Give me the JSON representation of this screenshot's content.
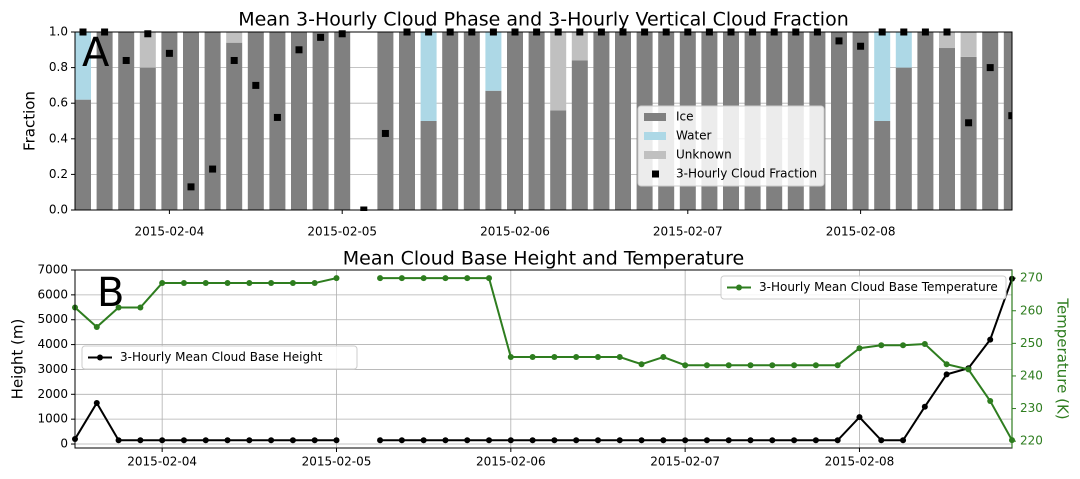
{
  "chart_data": [
    {
      "type": "bar",
      "title": "Mean 3-Hourly Cloud Phase and 3-Hourly Vertical Cloud Fraction",
      "panel_label": "A",
      "y_label": "Fraction",
      "categories": [
        null,
        null,
        null,
        null,
        "2015-02-04",
        null,
        null,
        null,
        null,
        null,
        null,
        null,
        "2015-02-05",
        null,
        null,
        null,
        null,
        null,
        null,
        null,
        "2015-02-06",
        null,
        null,
        null,
        null,
        null,
        null,
        null,
        "2015-02-07",
        null,
        null,
        null,
        null,
        null,
        null,
        null,
        "2015-02-08",
        null,
        null,
        null,
        null,
        null,
        null,
        null
      ],
      "series": [
        {
          "name": "Ice",
          "type": "bar",
          "color": "#808080",
          "values": [
            0.62,
            1,
            1,
            0.8,
            1,
            1,
            1,
            0.94,
            1,
            1,
            1,
            1,
            1,
            null,
            1,
            1,
            0.5,
            1,
            1,
            0.67,
            1,
            1,
            0.56,
            0.84,
            1,
            1,
            1,
            1,
            1,
            1,
            1,
            1,
            1,
            1,
            1,
            1,
            1,
            0.5,
            0.8,
            1,
            0.91,
            0.86,
            1,
            1
          ]
        },
        {
          "name": "Water",
          "type": "bar",
          "color": "#add8e6",
          "values": [
            0.38,
            0,
            0,
            0,
            0,
            0,
            0,
            0,
            0,
            0,
            0,
            0,
            0,
            null,
            0,
            0,
            0.5,
            0,
            0,
            0.33,
            0,
            0,
            0,
            0,
            0,
            0,
            0,
            0,
            0,
            0,
            0,
            0,
            0,
            0,
            0,
            0,
            0,
            0.5,
            0.2,
            0,
            0,
            0,
            0,
            0
          ]
        },
        {
          "name": "Unknown",
          "type": "bar",
          "color": "#c0c0c0",
          "values": [
            0,
            0,
            0,
            0.2,
            0,
            0,
            0,
            0.06,
            0,
            0,
            0,
            0,
            0,
            null,
            0,
            0,
            0,
            0,
            0,
            0,
            0,
            0,
            0.44,
            0.16,
            0,
            0,
            0,
            0,
            0,
            0,
            0,
            0,
            0,
            0,
            0,
            0,
            0,
            0,
            0,
            0,
            0.09,
            0.14,
            0,
            0
          ]
        },
        {
          "name": "3-Hourly Cloud Fraction",
          "type": "scatter",
          "color": "#000000",
          "values": [
            1,
            1,
            0.84,
            0.99,
            0.88,
            0.13,
            0.23,
            0.84,
            0.7,
            0.52,
            0.9,
            0.97,
            0.99,
            0,
            0.43,
            1,
            1,
            1,
            1,
            1,
            1,
            1,
            1,
            1,
            1,
            1,
            1,
            1,
            1,
            1,
            1,
            1,
            1,
            1,
            1,
            0.95,
            0.92,
            1,
            1,
            1,
            1,
            0.49,
            0.8,
            0.53
          ]
        }
      ],
      "ylim": [
        0,
        1
      ],
      "yticks": [
        {
          "value": 0,
          "label": "0.0"
        },
        0.2,
        0.4,
        0.6,
        0.8,
        {
          "value": 1,
          "label": "1.0"
        }
      ],
      "grid": true,
      "legend_loc": "center right"
    },
    {
      "type": "line",
      "title": "Mean Cloud Base Height and Temperature",
      "panel_label": "B",
      "y_label": "Height (m)",
      "y2_label": "Temperature (K)",
      "y2_color": "#2e7d1f",
      "categories": [
        null,
        null,
        null,
        null,
        "2015-02-04",
        null,
        null,
        null,
        null,
        null,
        null,
        null,
        "2015-02-05",
        null,
        null,
        null,
        null,
        null,
        null,
        null,
        "2015-02-06",
        null,
        null,
        null,
        null,
        null,
        null,
        null,
        "2015-02-07",
        null,
        null,
        null,
        null,
        null,
        null,
        null,
        "2015-02-08",
        null,
        null,
        null,
        null,
        null,
        null,
        null
      ],
      "series": [
        {
          "name": "3-Hourly Mean Cloud Base Height",
          "color": "#000000",
          "legend_loc": "center left",
          "values": [
            200,
            1650,
            150,
            150,
            150,
            150,
            150,
            150,
            150,
            150,
            150,
            150,
            150,
            null,
            150,
            150,
            150,
            150,
            150,
            150,
            150,
            150,
            150,
            150,
            150,
            150,
            150,
            150,
            150,
            150,
            150,
            150,
            150,
            150,
            150,
            150,
            1080,
            150,
            150,
            1500,
            2800,
            3050,
            4200,
            6650
          ]
        },
        {
          "name": "3-Hourly Mean Cloud Base Temperature",
          "color": "#2e7d1f",
          "axis": "y2",
          "legend_loc": "upper right",
          "values": [
            261,
            255,
            261,
            261,
            268.5,
            268.5,
            268.5,
            268.5,
            268.5,
            268.5,
            268.5,
            268.5,
            270,
            null,
            270,
            270,
            270,
            270,
            270,
            270,
            245.8,
            245.8,
            245.8,
            245.8,
            245.8,
            245.8,
            243.6,
            245.8,
            243.3,
            243.3,
            243.3,
            243.3,
            243.3,
            243.3,
            243.3,
            243.3,
            248.5,
            249.4,
            249.4,
            249.8,
            243.6,
            242,
            232.3,
            220.3
          ]
        }
      ],
      "ylim": [
        -160,
        7000
      ],
      "yticks": [
        0,
        1000,
        2000,
        3000,
        4000,
        5000,
        6000,
        7000
      ],
      "y2lim": [
        217.9,
        272.5
      ],
      "y2ticks": [
        220,
        230,
        240,
        250,
        260,
        270
      ],
      "grid": true
    }
  ]
}
